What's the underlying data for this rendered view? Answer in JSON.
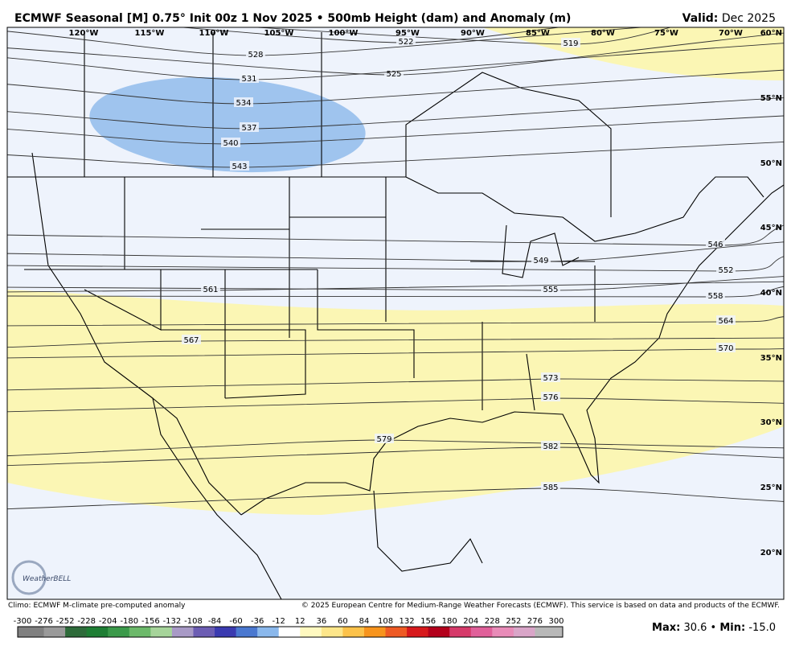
{
  "header": {
    "title": "ECMWF Seasonal [M] 0.75° Init 00z 1 Nov 2025 • 500mb Height (dam) and Anomaly (m)",
    "valid_label": "Valid:",
    "valid_value": "Dec 2025"
  },
  "map": {
    "longitude_labels": [
      "120°W",
      "115°W",
      "110°W",
      "105°W",
      "100°W",
      "95°W",
      "90°W",
      "85°W",
      "80°W",
      "75°W",
      "70°W"
    ],
    "latitude_labels": [
      "60°N",
      "55°N",
      "50°N",
      "45°N",
      "40°N",
      "35°N",
      "30°N",
      "25°N",
      "20°N"
    ],
    "contour_labels": [
      519,
      522,
      525,
      528,
      531,
      534,
      537,
      540,
      543,
      546,
      549,
      552,
      555,
      558,
      561,
      564,
      567,
      570,
      573,
      576,
      579,
      582,
      585
    ],
    "logo": "WeatherBELL"
  },
  "footer": {
    "climo": "Climo: ECMWF M-climate pre-computed anomaly",
    "copyright": "© 2025 European Centre for Medium-Range Weather Forecasts (ECMWF). This service is based on data and products of the ECMWF."
  },
  "colorbar": {
    "ticks": [
      -300,
      -276,
      -252,
      -228,
      -204,
      -180,
      -156,
      -132,
      -108,
      -84,
      -60,
      -36,
      -12,
      12,
      36,
      60,
      84,
      108,
      132,
      156,
      180,
      204,
      228,
      252,
      276,
      300
    ],
    "colors": [
      "#808080",
      "#9a9a9a",
      "#2e6b3a",
      "#1e7e34",
      "#3b9a4a",
      "#6cb96a",
      "#a6d49a",
      "#a89ac6",
      "#6c5db3",
      "#3a3ab0",
      "#4a78d0",
      "#8ab8ec",
      "#ffffff",
      "#fff9c0",
      "#fde68a",
      "#fcc24a",
      "#f7941d",
      "#ee5a24",
      "#d7191c",
      "#b3001b",
      "#d63a6a",
      "#e0609a",
      "#e88bb8",
      "#d9a5c8",
      "#b8b8b8"
    ]
  },
  "stats": {
    "max_label": "Max:",
    "max": "30.6",
    "min_label": "Min:",
    "min": "-15.0",
    "separator": "•"
  }
}
